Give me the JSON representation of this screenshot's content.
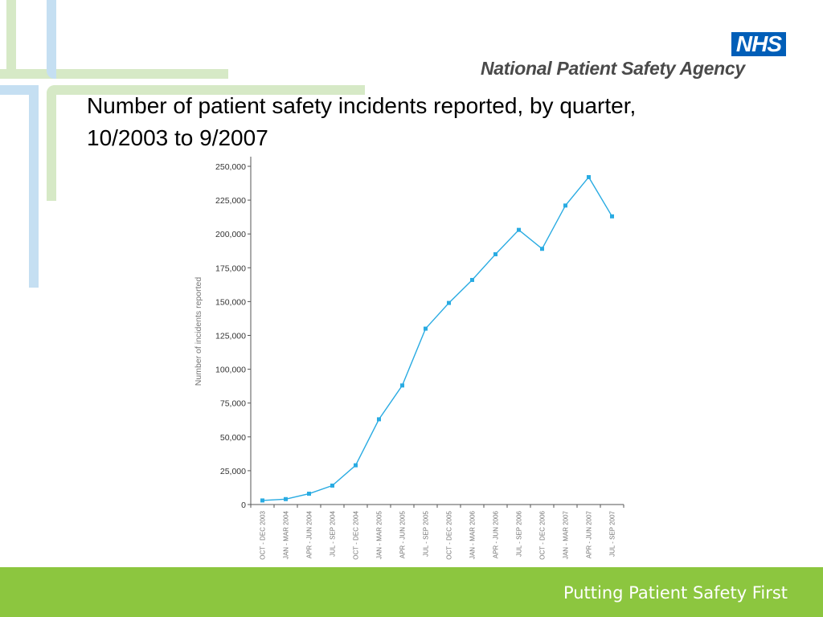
{
  "slide": {
    "title_line1": "Number of patient safety incidents reported, by quarter,",
    "title_line2": "10/2003 to 9/2007",
    "footer_text": "Putting Patient Safety First"
  },
  "logo": {
    "nhs": "NHS",
    "agency": "National Patient Safety Agency"
  },
  "colors": {
    "nhs_blue": "#005eb8",
    "line": "#29abe2",
    "footer_green": "#8cc63f",
    "deco_green": "#d6e9c6",
    "deco_blue": "#c5dff2"
  },
  "chart_data": {
    "type": "line",
    "title": "",
    "xlabel": "",
    "ylabel": "Number of incidents reported",
    "ylim": [
      0,
      250000
    ],
    "yticks": [
      "0",
      "25,000",
      "50,000",
      "75,000",
      "100,000",
      "125,000",
      "150,000",
      "175,000",
      "200,000",
      "225,000",
      "250,000"
    ],
    "categories": [
      "OCT - DEC 2003",
      "JAN - MAR 2004",
      "APR - JUN 2004",
      "JUL - SEP 2004",
      "OCT - DEC 2004",
      "JAN - MAR 2005",
      "APR - JUN 2005",
      "JUL - SEP 2005",
      "OCT - DEC 2005",
      "JAN - MAR 2006",
      "APR - JUN 2006",
      "JUL - SEP 2006",
      "OCT - DEC 2006",
      "JAN - MAR 2007",
      "APR - JUN 2007",
      "JUL - SEP 2007"
    ],
    "series": [
      {
        "values": [
          3000,
          4000,
          8000,
          14000,
          29000,
          63000,
          88000,
          130000,
          149000,
          166000,
          185000,
          203000,
          189000,
          221000,
          242000,
          213000
        ]
      }
    ],
    "grid": false,
    "legend": "none"
  }
}
